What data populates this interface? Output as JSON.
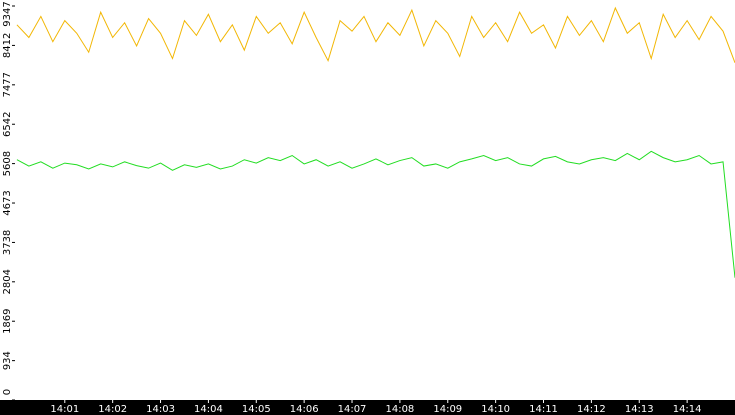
{
  "chart_data": {
    "type": "line",
    "x": [
      840,
      840.25,
      840.5,
      840.75,
      841,
      841.25,
      841.5,
      841.75,
      842,
      842.25,
      842.5,
      842.75,
      843,
      843.25,
      843.5,
      843.75,
      844,
      844.25,
      844.5,
      844.75,
      845,
      845.25,
      845.5,
      845.75,
      846,
      846.25,
      846.5,
      846.75,
      847,
      847.25,
      847.5,
      847.75,
      848,
      848.25,
      848.5,
      848.75,
      849,
      849.25,
      849.5,
      849.75,
      850,
      850.25,
      850.5,
      850.75,
      851,
      851.25,
      851.5,
      851.75,
      852,
      852.25,
      852.5,
      852.75,
      853,
      853.25,
      853.5,
      853.75,
      854,
      854.25,
      854.5,
      854.75,
      855
    ],
    "series": [
      {
        "color": "#f2b705",
        "values": [
          8900,
          8600,
          9100,
          8500,
          9000,
          8700,
          8250,
          9200,
          8600,
          8950,
          8400,
          9050,
          8700,
          8100,
          9000,
          8650,
          9150,
          8500,
          8900,
          8300,
          9100,
          8700,
          8950,
          8450,
          9200,
          8600,
          8050,
          9000,
          8750,
          9100,
          8500,
          8950,
          8650,
          9250,
          8400,
          9000,
          8700,
          8150,
          9100,
          8600,
          8950,
          8500,
          9200,
          8700,
          8900,
          8350,
          9100,
          8650,
          9000,
          8500,
          9300,
          8700,
          8950,
          8100,
          9150,
          8600,
          9000,
          8550,
          9100,
          8750,
          8000
        ]
      },
      {
        "color": "#22dd22",
        "values": [
          5700,
          5550,
          5650,
          5500,
          5620,
          5580,
          5480,
          5600,
          5530,
          5650,
          5560,
          5500,
          5620,
          5450,
          5580,
          5520,
          5600,
          5480,
          5550,
          5700,
          5620,
          5750,
          5680,
          5800,
          5600,
          5700,
          5550,
          5650,
          5500,
          5600,
          5720,
          5580,
          5680,
          5750,
          5550,
          5600,
          5500,
          5650,
          5720,
          5800,
          5680,
          5750,
          5600,
          5550,
          5720,
          5780,
          5650,
          5600,
          5700,
          5750,
          5680,
          5850,
          5700,
          5900,
          5750,
          5650,
          5700,
          5800,
          5600,
          5650,
          2900
        ]
      }
    ],
    "xlim": [
      839.96,
      855.0
    ],
    "xticks": [
      {
        "value": 841,
        "label": "14:01"
      },
      {
        "value": 842,
        "label": "14:02"
      },
      {
        "value": 843,
        "label": "14:03"
      },
      {
        "value": 844,
        "label": "14:04"
      },
      {
        "value": 845,
        "label": "14:05"
      },
      {
        "value": 846,
        "label": "14:06"
      },
      {
        "value": 847,
        "label": "14:07"
      },
      {
        "value": 848,
        "label": "14:08"
      },
      {
        "value": 849,
        "label": "14:09"
      },
      {
        "value": 850,
        "label": "14:10"
      },
      {
        "value": 851,
        "label": "14:11"
      },
      {
        "value": 852,
        "label": "14:12"
      },
      {
        "value": 853,
        "label": "14:13"
      },
      {
        "value": 854,
        "label": "14:14"
      }
    ],
    "ylim": [
      0,
      9347
    ],
    "yticks": [
      0,
      934,
      1869,
      2804,
      3738,
      4673,
      5608,
      6542,
      7477,
      8412,
      9347
    ]
  }
}
